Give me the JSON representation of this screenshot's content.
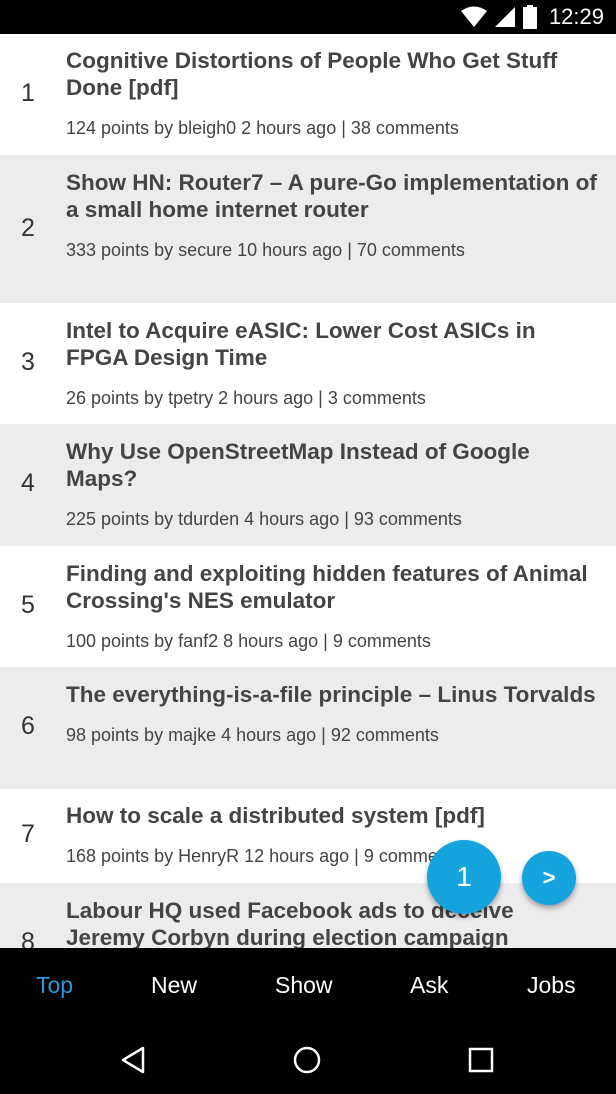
{
  "status_bar": {
    "time": "12:29",
    "icons": [
      "wifi-icon",
      "signal-icon",
      "battery-icon"
    ]
  },
  "stories": [
    {
      "rank": "1",
      "title": "Cognitive Distortions of People Who Get Stuff Done [pdf]",
      "meta": "124 points by bleigh0 2 hours ago | 38 comments"
    },
    {
      "rank": "2",
      "title": "Show HN: Router7 – A pure-Go implementation of a small home internet router",
      "meta": "333 points by secure 10 hours ago | 70 comments"
    },
    {
      "rank": "3",
      "title": "Intel to Acquire eASIC: Lower Cost ASICs in FPGA Design Time",
      "meta": "26 points by tpetry 2 hours ago | 3 comments"
    },
    {
      "rank": "4",
      "title": "Why Use OpenStreetMap Instead of Google Maps?",
      "meta": "225 points by tdurden 4 hours ago | 93 comments"
    },
    {
      "rank": "5",
      "title": "Finding and exploiting hidden features of Animal Crossing's NES emulator",
      "meta": "100 points by fanf2 8 hours ago | 9 comments"
    },
    {
      "rank": "6",
      "title": "The everything-is-a-file principle – Linus Torvalds",
      "meta": "98 points by majke 4 hours ago | 92 comments"
    },
    {
      "rank": "7",
      "title": "How to scale a distributed system [pdf]",
      "meta": "168 points by HenryR 12 hours ago | 9 comments"
    },
    {
      "rank": "8",
      "title": "Labour HQ used Facebook ads to deceive Jeremy Corbyn during election campaign",
      "meta": ""
    }
  ],
  "pager": {
    "page": "1",
    "next_label": ">"
  },
  "tabs": [
    {
      "label": "Top",
      "active": true
    },
    {
      "label": "New",
      "active": false
    },
    {
      "label": "Show",
      "active": false
    },
    {
      "label": "Ask",
      "active": false
    },
    {
      "label": "Jobs",
      "active": false
    }
  ],
  "nav_buttons": [
    "back-icon",
    "home-icon",
    "recents-icon"
  ],
  "colors": {
    "accent": "#14a3dd",
    "active_tab": "#2a97d3",
    "alt_row": "#ececec"
  }
}
